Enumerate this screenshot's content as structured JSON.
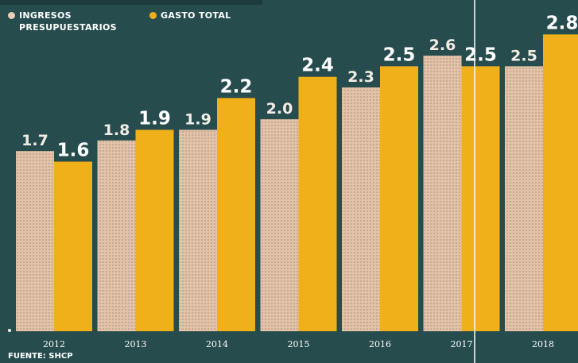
{
  "chart_data": {
    "type": "bar",
    "categories": [
      "2012",
      "2013",
      "2014",
      "2015",
      "2016",
      "2017",
      "2018"
    ],
    "series": [
      {
        "name": "INGRESOS PRESUPUESTARIOS",
        "values": [
          1.7,
          1.8,
          1.9,
          2.0,
          2.3,
          2.6,
          2.5
        ],
        "labels": [
          "1.7",
          "1.8",
          "1.9",
          "2.0",
          "2.3",
          "2.6",
          "2.5"
        ],
        "color": "#e2c2a8"
      },
      {
        "name": "GASTO TOTAL",
        "values": [
          1.6,
          1.9,
          2.2,
          2.4,
          2.5,
          2.5,
          2.8
        ],
        "labels": [
          "1.6",
          "1.9",
          "2.2",
          "2.4",
          "2.5",
          "2.5",
          "2.8"
        ],
        "color": "#f0b01a"
      }
    ],
    "ylim": [
      0,
      2.9
    ],
    "legend_position": "top-left",
    "grid": false
  },
  "legend": {
    "ingresos_line1": "INGRESOS",
    "ingresos_line2": "PRESUPUESTARIOS",
    "gasto": "GASTO TOTAL"
  },
  "source": "FUENTE: SHCP",
  "colors": {
    "background": "#274c4e",
    "ingresos": "#e2c2a8",
    "gasto": "#f0b01a",
    "ingresos_dot": "#e8cdb8",
    "gasto_dot": "#f0b01a",
    "text": "#ffffff"
  }
}
